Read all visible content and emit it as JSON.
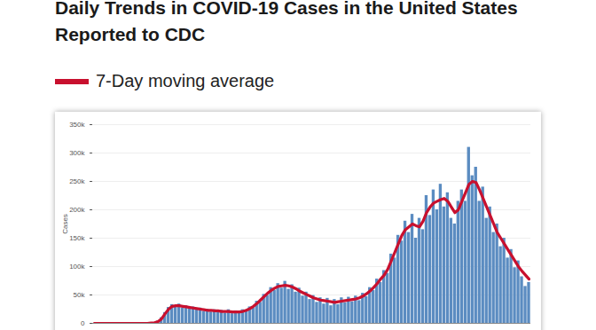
{
  "chart_data": {
    "type": "bar",
    "title": "Daily Trends in COVID-19 Cases in the United States Reported to CDC",
    "y_label": "Cases",
    "legend": "top-left",
    "grid": true,
    "tick_labels": "y",
    "ylim": [
      0,
      350000
    ],
    "yticks": [
      0,
      {
        "value": 50000,
        "label": "50k"
      },
      {
        "value": 100000,
        "label": "100k"
      },
      {
        "value": 150000,
        "label": "150k"
      },
      {
        "value": 200000,
        "label": "200k"
      },
      {
        "value": 250000,
        "label": "250k"
      },
      {
        "value": 300000,
        "label": "300k"
      },
      {
        "value": 350000,
        "label": "350k"
      }
    ],
    "categories": [
      null,
      null,
      null,
      null,
      null,
      null,
      null,
      null,
      null,
      null,
      null,
      null,
      null,
      null,
      null,
      null,
      null,
      null,
      null,
      null,
      null,
      null,
      null,
      null,
      null,
      null,
      null,
      null,
      null,
      null,
      null,
      null,
      null,
      null,
      null,
      null,
      null,
      null,
      null,
      null,
      null,
      null,
      null,
      null,
      null,
      null,
      null,
      null,
      null,
      null,
      null,
      null,
      null,
      null,
      null,
      null,
      null,
      null,
      null,
      null,
      null,
      null,
      null,
      null,
      null,
      null,
      null,
      null,
      null,
      null,
      null,
      null,
      null,
      null,
      null,
      null,
      null,
      null,
      null,
      null,
      null,
      null,
      null,
      null,
      null,
      null,
      null,
      null,
      null,
      null,
      null,
      null,
      null,
      null,
      null,
      null,
      null,
      null,
      null,
      null,
      null,
      null,
      null,
      null,
      null,
      null,
      null,
      null,
      null,
      null,
      null,
      null,
      null,
      null,
      null,
      null,
      null,
      null,
      null,
      null,
      null,
      null,
      null,
      null
    ],
    "series": [
      {
        "type": "bar",
        "color": "#5b8cc1",
        "values": [
          0,
          0,
          0,
          0,
          0,
          0,
          0,
          0,
          0,
          0,
          0,
          0,
          0,
          0,
          0,
          0,
          400,
          1200,
          4000,
          10000,
          19000,
          28000,
          33000,
          29000,
          34000,
          27000,
          31000,
          25000,
          29000,
          24000,
          27000,
          21000,
          25000,
          20000,
          24000,
          19000,
          23000,
          18000,
          24000,
          17000,
          22000,
          18000,
          24000,
          21000,
          29000,
          27000,
          39000,
          37000,
          51000,
          49000,
          63000,
          58000,
          70000,
          62000,
          74000,
          60000,
          68000,
          55000,
          62000,
          48000,
          55000,
          42000,
          49000,
          37000,
          45000,
          34000,
          44000,
          31000,
          42000,
          33000,
          45000,
          36000,
          46000,
          38000,
          48000,
          40000,
          53000,
          47000,
          63000,
          58000,
          78000,
          72000,
          93000,
          88000,
          122000,
          115000,
          155000,
          145000,
          180000,
          160000,
          192000,
          150000,
          185000,
          165000,
          225000,
          190000,
          235000,
          200000,
          245000,
          205000,
          230000,
          185000,
          175000,
          215000,
          235000,
          215000,
          310000,
          260000,
          275000,
          215000,
          240000,
          185000,
          205000,
          160000,
          175000,
          135000,
          150000,
          115000,
          130000,
          98000,
          110000,
          82000,
          65000,
          72000
        ]
      },
      {
        "name": "7-Day moving average",
        "type": "line",
        "color": "#c8102e",
        "values": [
          0,
          0,
          0,
          0,
          0,
          0,
          0,
          0,
          0,
          0,
          0,
          0,
          0,
          0,
          0,
          0,
          500,
          1000,
          3000,
          8000,
          17000,
          25000,
          30000,
          31000,
          31000,
          30000,
          29000,
          28000,
          27000,
          26000,
          25000,
          24000,
          23000,
          23000,
          22000,
          22000,
          21000,
          21000,
          21000,
          20000,
          20000,
          20000,
          21000,
          23000,
          26000,
          30000,
          35000,
          41000,
          47000,
          53000,
          58000,
          62000,
          65000,
          66000,
          67000,
          66000,
          64000,
          61000,
          57000,
          54000,
          51000,
          48000,
          45000,
          43000,
          41000,
          40000,
          39000,
          38000,
          37000,
          38000,
          39000,
          40000,
          41000,
          42000,
          43000,
          45000,
          48000,
          52000,
          57000,
          63000,
          70000,
          78000,
          85000,
          95000,
          110000,
          125000,
          140000,
          155000,
          165000,
          170000,
          175000,
          172000,
          170000,
          180000,
          195000,
          205000,
          212000,
          215000,
          218000,
          220000,
          215000,
          205000,
          195000,
          200000,
          215000,
          230000,
          245000,
          250000,
          248000,
          235000,
          220000,
          205000,
          190000,
          175000,
          160000,
          150000,
          140000,
          130000,
          120000,
          110000,
          100000,
          92000,
          85000,
          78000
        ]
      }
    ]
  }
}
